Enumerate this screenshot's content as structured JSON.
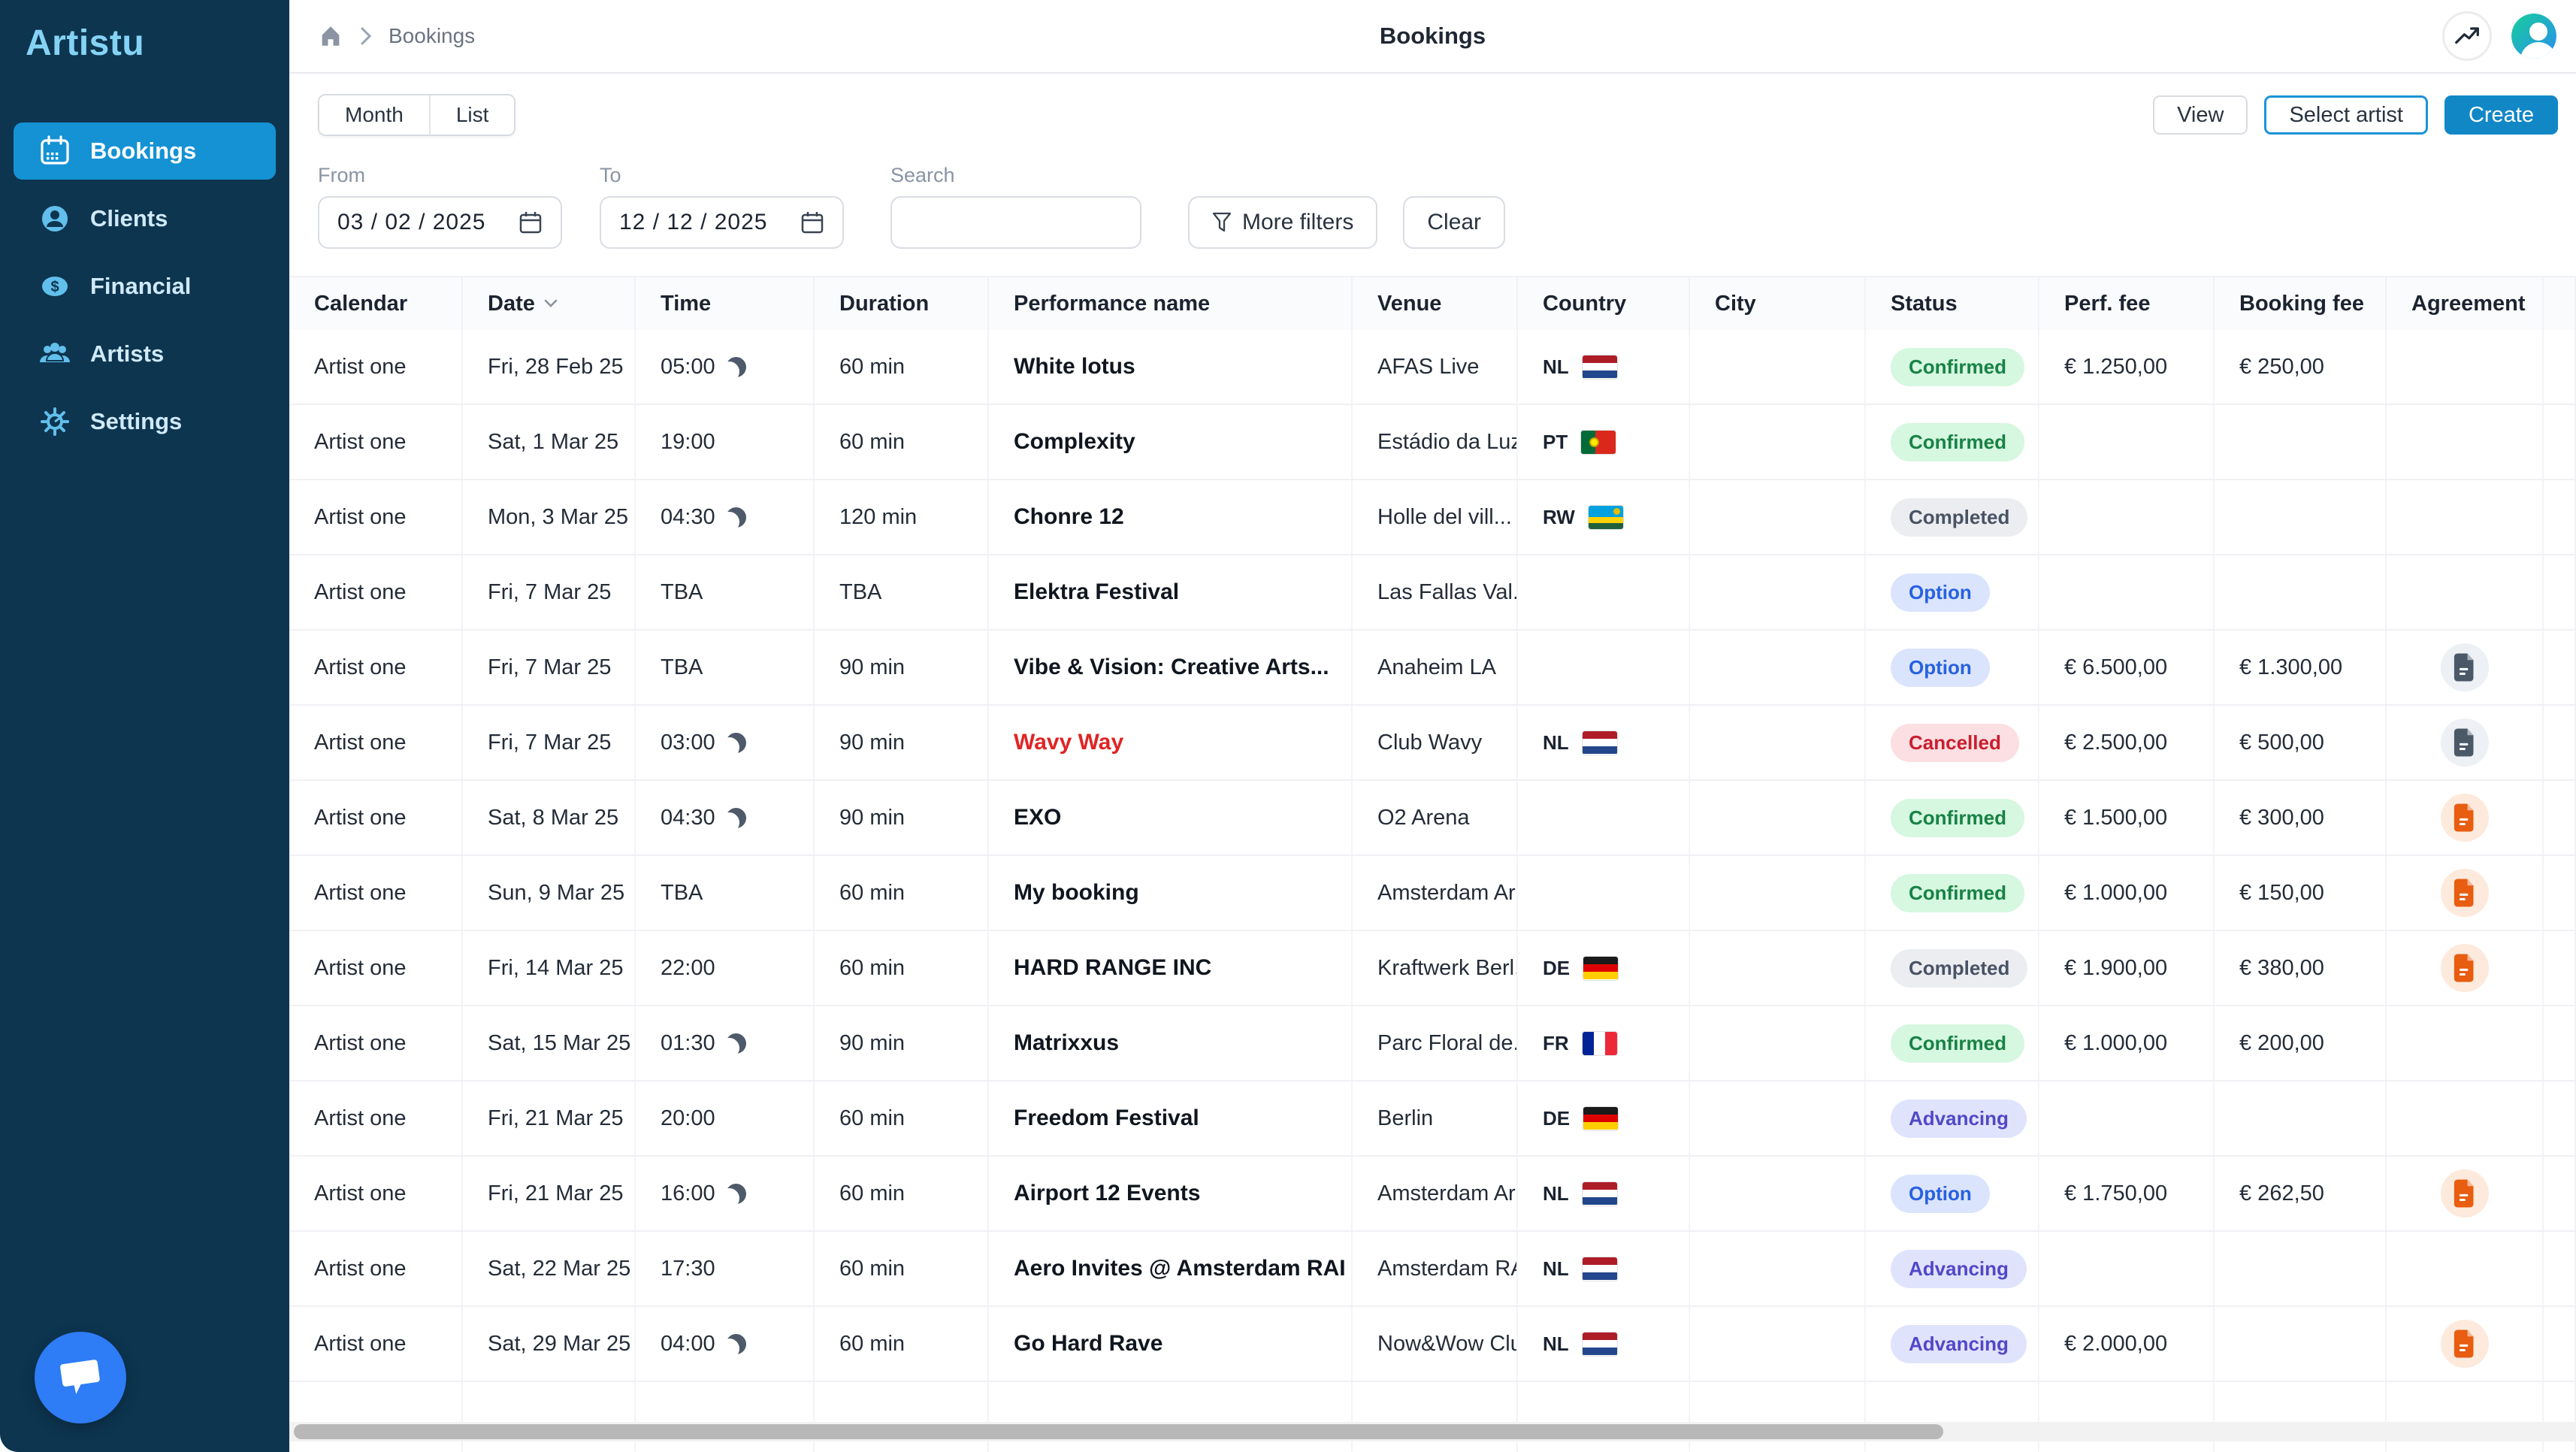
{
  "sidebar": {
    "logo": "Artistu",
    "items": [
      {
        "label": "Bookings",
        "icon": "calendar-icon",
        "active": true
      },
      {
        "label": "Clients",
        "icon": "person-icon",
        "active": false
      },
      {
        "label": "Financial",
        "icon": "dollar-icon",
        "active": false
      },
      {
        "label": "Artists",
        "icon": "people-icon",
        "active": false
      },
      {
        "label": "Settings",
        "icon": "gear-icon",
        "active": false
      }
    ]
  },
  "header": {
    "breadcrumb": "Bookings",
    "title": "Bookings"
  },
  "toolbar": {
    "view_modes": [
      "Month",
      "List"
    ],
    "view_label": "View",
    "select_artist_label": "Select artist",
    "create_label": "Create"
  },
  "filters": {
    "from_label": "From",
    "from_value": "03 / 02 / 2025",
    "to_label": "To",
    "to_value": "12 / 12 / 2025",
    "search_label": "Search",
    "search_placeholder": "",
    "more_filters_label": "More filters",
    "clear_label": "Clear"
  },
  "table": {
    "columns": [
      "Calendar",
      "Date",
      "Time",
      "Duration",
      "Performance name",
      "Venue",
      "Country",
      "City",
      "Status",
      "Perf. fee",
      "Booking fee",
      "Agreement"
    ],
    "sorted_column": "Date",
    "rows": [
      {
        "calendar": "Artist one",
        "date": "Fri, 28 Feb 25",
        "time": "05:00",
        "moon": true,
        "duration": "60 min",
        "performance": "White lotus",
        "cancelled": false,
        "venue": "AFAS Live",
        "country": "NL",
        "city": "",
        "status": "Confirmed",
        "perf_fee": "€ 1.250,00",
        "booking_fee": "€ 250,00",
        "agreement": ""
      },
      {
        "calendar": "Artist one",
        "date": "Sat, 1 Mar 25",
        "time": "19:00",
        "moon": false,
        "duration": "60 min",
        "performance": "Complexity",
        "cancelled": false,
        "venue": "Estádio da Luz",
        "country": "PT",
        "city": "",
        "status": "Confirmed",
        "perf_fee": "",
        "booking_fee": "",
        "agreement": ""
      },
      {
        "calendar": "Artist one",
        "date": "Mon, 3 Mar 25",
        "time": "04:30",
        "moon": true,
        "duration": "120 min",
        "performance": "Chonre 12",
        "cancelled": false,
        "venue": "Holle del vill...",
        "country": "RW",
        "city": "",
        "status": "Completed",
        "perf_fee": "",
        "booking_fee": "",
        "agreement": ""
      },
      {
        "calendar": "Artist one",
        "date": "Fri, 7 Mar 25",
        "time": "TBA",
        "moon": false,
        "duration": "TBA",
        "performance": "Elektra Festival",
        "cancelled": false,
        "venue": "Las Fallas Val...",
        "country": "",
        "city": "",
        "status": "Option",
        "perf_fee": "",
        "booking_fee": "",
        "agreement": ""
      },
      {
        "calendar": "Artist one",
        "date": "Fri, 7 Mar 25",
        "time": "TBA",
        "moon": false,
        "duration": "90 min",
        "performance": "Vibe & Vision: Creative Arts...",
        "cancelled": false,
        "venue": "Anaheim LA",
        "country": "",
        "city": "",
        "status": "Option",
        "perf_fee": "€ 6.500,00",
        "booking_fee": "€ 1.300,00",
        "agreement": "dark"
      },
      {
        "calendar": "Artist one",
        "date": "Fri, 7 Mar 25",
        "time": "03:00",
        "moon": true,
        "duration": "90 min",
        "performance": "Wavy Way",
        "cancelled": true,
        "venue": "Club Wavy",
        "country": "NL",
        "city": "",
        "status": "Cancelled",
        "perf_fee": "€ 2.500,00",
        "booking_fee": "€ 500,00",
        "agreement": "dark"
      },
      {
        "calendar": "Artist one",
        "date": "Sat, 8 Mar 25",
        "time": "04:30",
        "moon": true,
        "duration": "90 min",
        "performance": "EXO",
        "cancelled": false,
        "venue": "O2 Arena",
        "country": "",
        "city": "",
        "status": "Confirmed",
        "perf_fee": "€ 1.500,00",
        "booking_fee": "€ 300,00",
        "agreement": "orange"
      },
      {
        "calendar": "Artist one",
        "date": "Sun, 9 Mar 25",
        "time": "TBA",
        "moon": false,
        "duration": "60 min",
        "performance": "My booking",
        "cancelled": false,
        "venue": "Amsterdam Aren...",
        "country": "",
        "city": "",
        "status": "Confirmed",
        "perf_fee": "€ 1.000,00",
        "booking_fee": "€ 150,00",
        "agreement": "orange"
      },
      {
        "calendar": "Artist one",
        "date": "Fri, 14 Mar 25",
        "time": "22:00",
        "moon": false,
        "duration": "60 min",
        "performance": "HARD RANGE INC",
        "cancelled": false,
        "venue": "Kraftwerk Berl...",
        "country": "DE",
        "city": "",
        "status": "Completed",
        "perf_fee": "€ 1.900,00",
        "booking_fee": "€ 380,00",
        "agreement": "orange"
      },
      {
        "calendar": "Artist one",
        "date": "Sat, 15 Mar 25",
        "time": "01:30",
        "moon": true,
        "duration": "90 min",
        "performance": "Matrixxus",
        "cancelled": false,
        "venue": "Parc Floral de...",
        "country": "FR",
        "city": "",
        "status": "Confirmed",
        "perf_fee": "€ 1.000,00",
        "booking_fee": "€ 200,00",
        "agreement": ""
      },
      {
        "calendar": "Artist one",
        "date": "Fri, 21 Mar 25",
        "time": "20:00",
        "moon": false,
        "duration": "60 min",
        "performance": "Freedom Festival",
        "cancelled": false,
        "venue": "Berlin",
        "country": "DE",
        "city": "",
        "status": "Advancing",
        "perf_fee": "",
        "booking_fee": "",
        "agreement": ""
      },
      {
        "calendar": "Artist one",
        "date": "Fri, 21 Mar 25",
        "time": "16:00",
        "moon": true,
        "duration": "60 min",
        "performance": "Airport 12 Events",
        "cancelled": false,
        "venue": "Amsterdam Aren...",
        "country": "NL",
        "city": "",
        "status": "Option",
        "perf_fee": "€ 1.750,00",
        "booking_fee": "€ 262,50",
        "agreement": "orange"
      },
      {
        "calendar": "Artist one",
        "date": "Sat, 22 Mar 25",
        "time": "17:30",
        "moon": false,
        "duration": "60 min",
        "performance": "Aero Invites @ Amsterdam RAI",
        "cancelled": false,
        "venue": "Amsterdam RAI",
        "country": "NL",
        "city": "",
        "status": "Advancing",
        "perf_fee": "",
        "booking_fee": "",
        "agreement": ""
      },
      {
        "calendar": "Artist one",
        "date": "Sat, 29 Mar 25",
        "time": "04:00",
        "moon": true,
        "duration": "60 min",
        "performance": "Go Hard Rave",
        "cancelled": false,
        "venue": "Now&Wow Club R...",
        "country": "NL",
        "city": "",
        "status": "Advancing",
        "perf_fee": "€ 2.000,00",
        "booking_fee": "",
        "agreement": "orange"
      },
      {
        "calendar": "",
        "date": "",
        "time": "",
        "moon": false,
        "duration": "",
        "performance": "",
        "cancelled": false,
        "venue": "",
        "country": "",
        "city": "",
        "status": "",
        "perf_fee": "",
        "booking_fee": "",
        "agreement": ""
      }
    ]
  },
  "colors": {
    "sidebar_bg": "#0d3550",
    "active_nav": "#1492d4",
    "brand_blue": "#1187c6",
    "cancelled_text": "#e02424",
    "status": {
      "Confirmed": {
        "bg": "#d6f7e0",
        "fg": "#178245"
      },
      "Completed": {
        "bg": "#ebedf1",
        "fg": "#485364"
      },
      "Option": {
        "bg": "#dbe4fd",
        "fg": "#2761e0"
      },
      "Cancelled": {
        "bg": "#fcdfe2",
        "fg": "#c81e2e"
      },
      "Advancing": {
        "bg": "#e0e3fc",
        "fg": "#5048c7"
      }
    },
    "agreement": {
      "dark": {
        "icon": "#4b5868",
        "bg": "#edf0f4"
      },
      "orange": {
        "icon": "#e85d10",
        "bg": "#fdeadc"
      }
    }
  }
}
